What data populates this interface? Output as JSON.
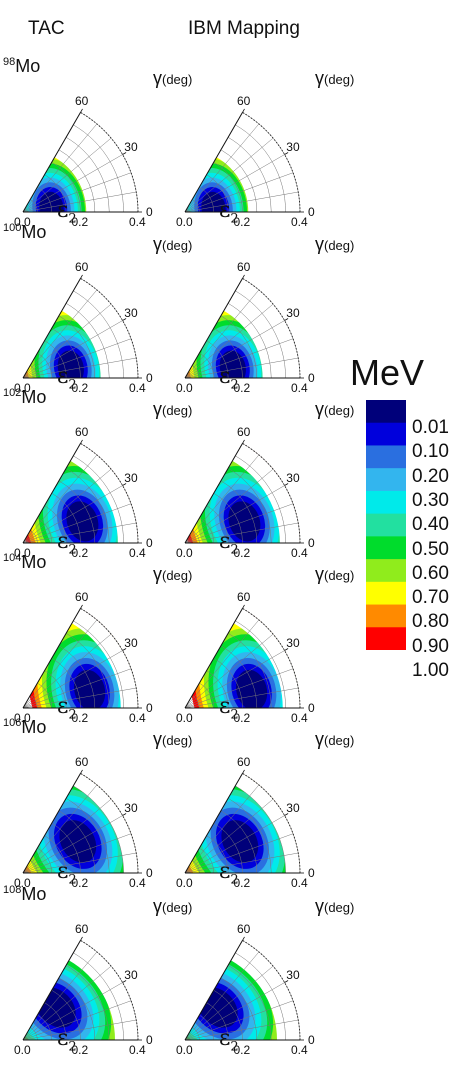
{
  "columns": [
    "TAC",
    "IBM Mapping"
  ],
  "axis": {
    "gamma_label": "γ",
    "gamma_unit": "(deg)",
    "eps_symbol": "ε",
    "eps_subscript": "2",
    "eps_ticks": [
      "0.0",
      "0.2",
      "0.4"
    ],
    "gamma_ticks": [
      "0",
      "30",
      "60"
    ]
  },
  "colorbar": {
    "title": "MeV",
    "labels": [
      "0.01",
      "0.10",
      "0.20",
      "0.30",
      "0.40",
      "0.50",
      "0.60",
      "0.70",
      "0.80",
      "0.90",
      "1.00"
    ],
    "colors": [
      "#00007a",
      "#0000dc",
      "#2a6fe0",
      "#33b5ee",
      "#00eaea",
      "#22e0a0",
      "#00dc2c",
      "#90ec1c",
      "#ffff00",
      "#ff8a00",
      "#ff0000"
    ]
  },
  "rows": [
    {
      "mass": "98",
      "element": "Mo"
    },
    {
      "mass": "100",
      "element": "Mo"
    },
    {
      "mass": "102",
      "element": "Mo"
    },
    {
      "mass": "104",
      "element": "Mo"
    },
    {
      "mass": "106",
      "element": "Mo"
    },
    {
      "mass": "108",
      "element": "Mo"
    }
  ],
  "chart_data": {
    "type": "heatmap",
    "xlabel": "ε2",
    "ylabel": "γ(deg)",
    "x_range": [
      0,
      0.4
    ],
    "gamma_range": [
      0,
      60
    ],
    "color_levels_MeV": [
      0.01,
      0.1,
      0.2,
      0.3,
      0.4,
      0.5,
      0.6,
      0.7,
      0.8,
      0.9,
      1.0
    ],
    "panels": [
      {
        "nucleus": "98Mo",
        "method": "TAC",
        "min_eps": 0.1,
        "min_gamma": 8,
        "eps_at_1MeV": 0.22
      },
      {
        "nucleus": "98Mo",
        "method": "IBM Mapping",
        "min_eps": 0.1,
        "min_gamma": 8,
        "eps_at_1MeV": 0.22
      },
      {
        "nucleus": "100Mo",
        "method": "TAC",
        "min_eps": 0.17,
        "min_gamma": 12,
        "eps_at_1MeV": 0.27
      },
      {
        "nucleus": "100Mo",
        "method": "IBM Mapping",
        "min_eps": 0.17,
        "min_gamma": 12,
        "eps_at_1MeV": 0.27
      },
      {
        "nucleus": "102Mo",
        "method": "TAC",
        "min_eps": 0.22,
        "min_gamma": 20,
        "eps_at_1MeV": 0.33
      },
      {
        "nucleus": "102Mo",
        "method": "IBM Mapping",
        "min_eps": 0.22,
        "min_gamma": 20,
        "eps_at_1MeV": 0.33
      },
      {
        "nucleus": "104Mo",
        "method": "TAC",
        "min_eps": 0.24,
        "min_gamma": 15,
        "eps_at_1MeV": 0.34
      },
      {
        "nucleus": "104Mo",
        "method": "IBM Mapping",
        "min_eps": 0.24,
        "min_gamma": 15,
        "eps_at_1MeV": 0.34
      },
      {
        "nucleus": "106Mo",
        "method": "TAC",
        "min_eps": 0.22,
        "min_gamma": 30,
        "eps_at_1MeV": 0.35
      },
      {
        "nucleus": "106Mo",
        "method": "IBM Mapping",
        "min_eps": 0.22,
        "min_gamma": 30,
        "eps_at_1MeV": 0.35
      },
      {
        "nucleus": "108Mo",
        "method": "TAC",
        "min_eps": 0.16,
        "min_gamma": 45,
        "eps_at_1MeV": 0.32
      },
      {
        "nucleus": "108Mo",
        "method": "IBM Mapping",
        "min_eps": 0.16,
        "min_gamma": 45,
        "eps_at_1MeV": 0.32
      }
    ]
  }
}
